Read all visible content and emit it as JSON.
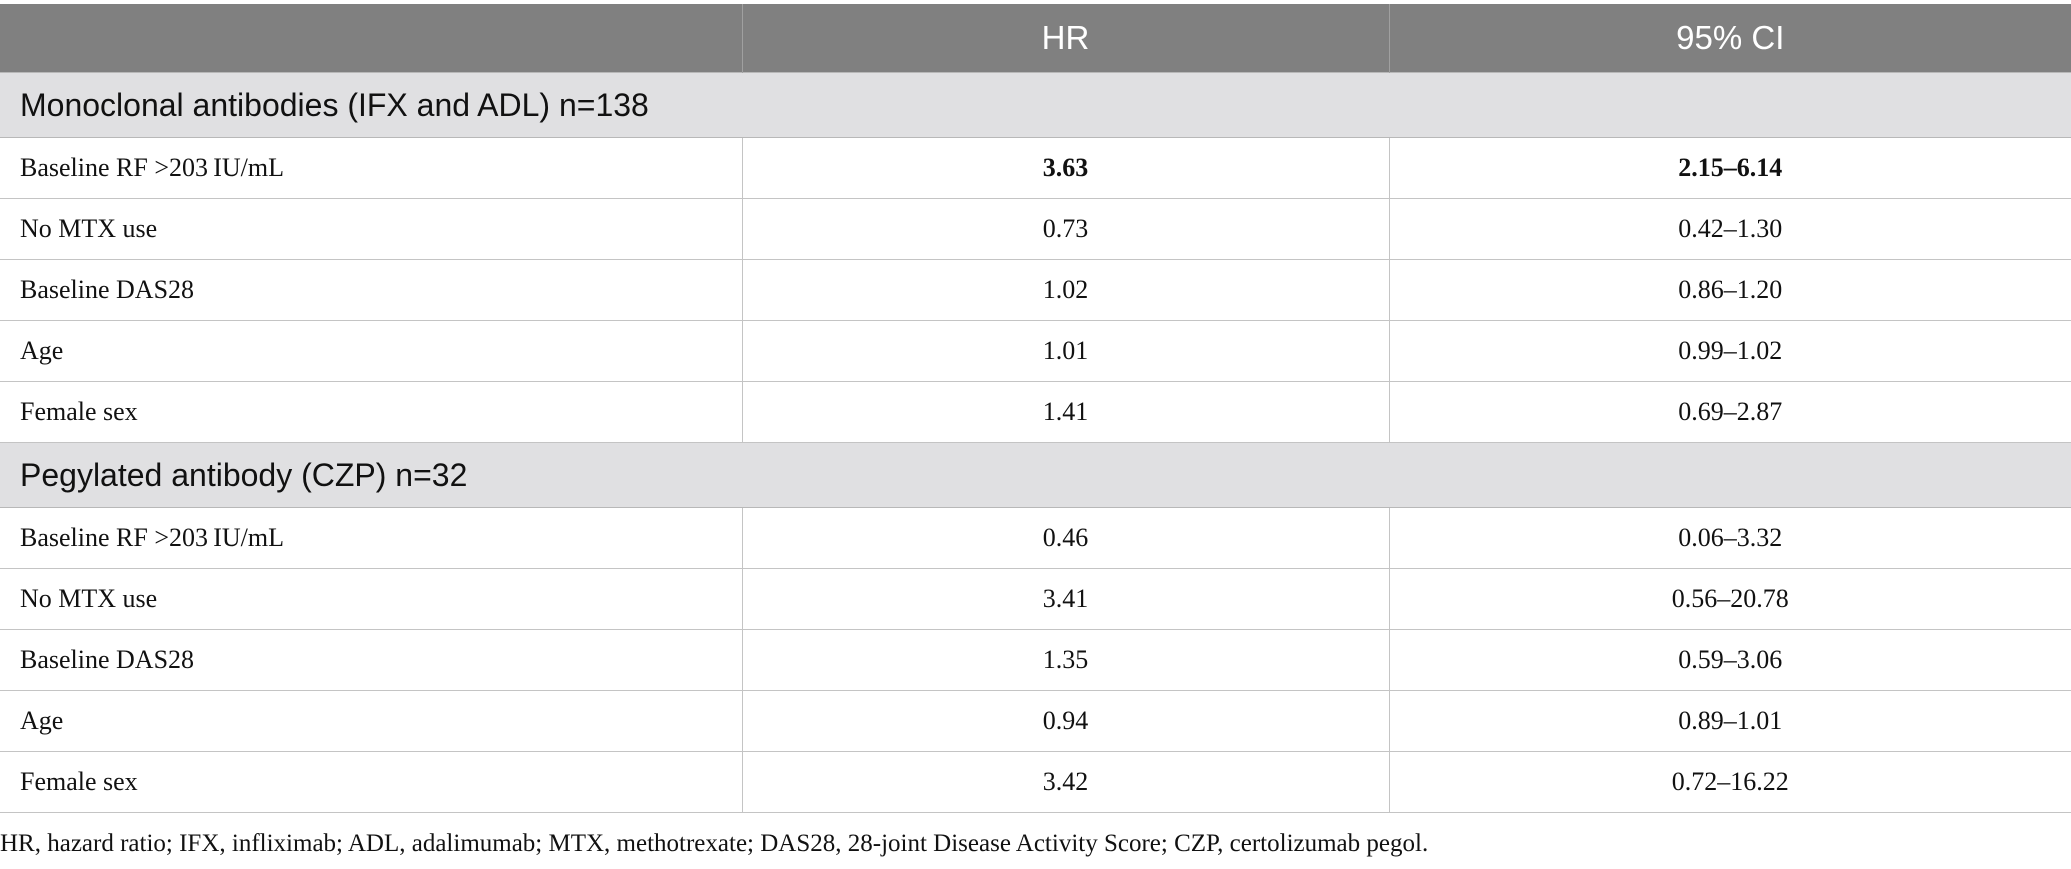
{
  "table": {
    "columns": [
      "",
      "HR",
      "95% CI"
    ],
    "groups": [
      {
        "title": "Monoclonal antibodies (IFX and ADL) n=138",
        "rows": [
          {
            "label": "Baseline RF >203 IU/mL",
            "hr": "3.63",
            "ci": "2.15–6.14",
            "bold": true
          },
          {
            "label": "No MTX use",
            "hr": "0.73",
            "ci": "0.42–1.30",
            "bold": false
          },
          {
            "label": "Baseline DAS28",
            "hr": "1.02",
            "ci": "0.86–1.20",
            "bold": false
          },
          {
            "label": "Age",
            "hr": "1.01",
            "ci": "0.99–1.02",
            "bold": false
          },
          {
            "label": "Female sex",
            "hr": "1.41",
            "ci": "0.69–2.87",
            "bold": false
          }
        ]
      },
      {
        "title": "Pegylated antibody (CZP) n=32",
        "rows": [
          {
            "label": "Baseline RF >203 IU/mL",
            "hr": "0.46",
            "ci": "0.06–3.32",
            "bold": false
          },
          {
            "label": "No MTX use",
            "hr": "3.41",
            "ci": "0.56–20.78",
            "bold": false
          },
          {
            "label": "Baseline DAS28",
            "hr": "1.35",
            "ci": "0.59–3.06",
            "bold": false
          },
          {
            "label": "Age",
            "hr": "0.94",
            "ci": "0.89–1.01",
            "bold": false
          },
          {
            "label": "Female sex",
            "hr": "3.42",
            "ci": "0.72–16.22",
            "bold": false
          }
        ]
      }
    ]
  },
  "footnote": "HR, hazard ratio; IFX, infliximab; ADL, adalimumab; MTX, methotrexate; DAS28, 28-joint Disease Activity Score; CZP, certolizumab pegol.",
  "colors": {
    "header_bg": "#808080",
    "group_bg": "#e0e0e2",
    "border": "#c4c4c4"
  }
}
